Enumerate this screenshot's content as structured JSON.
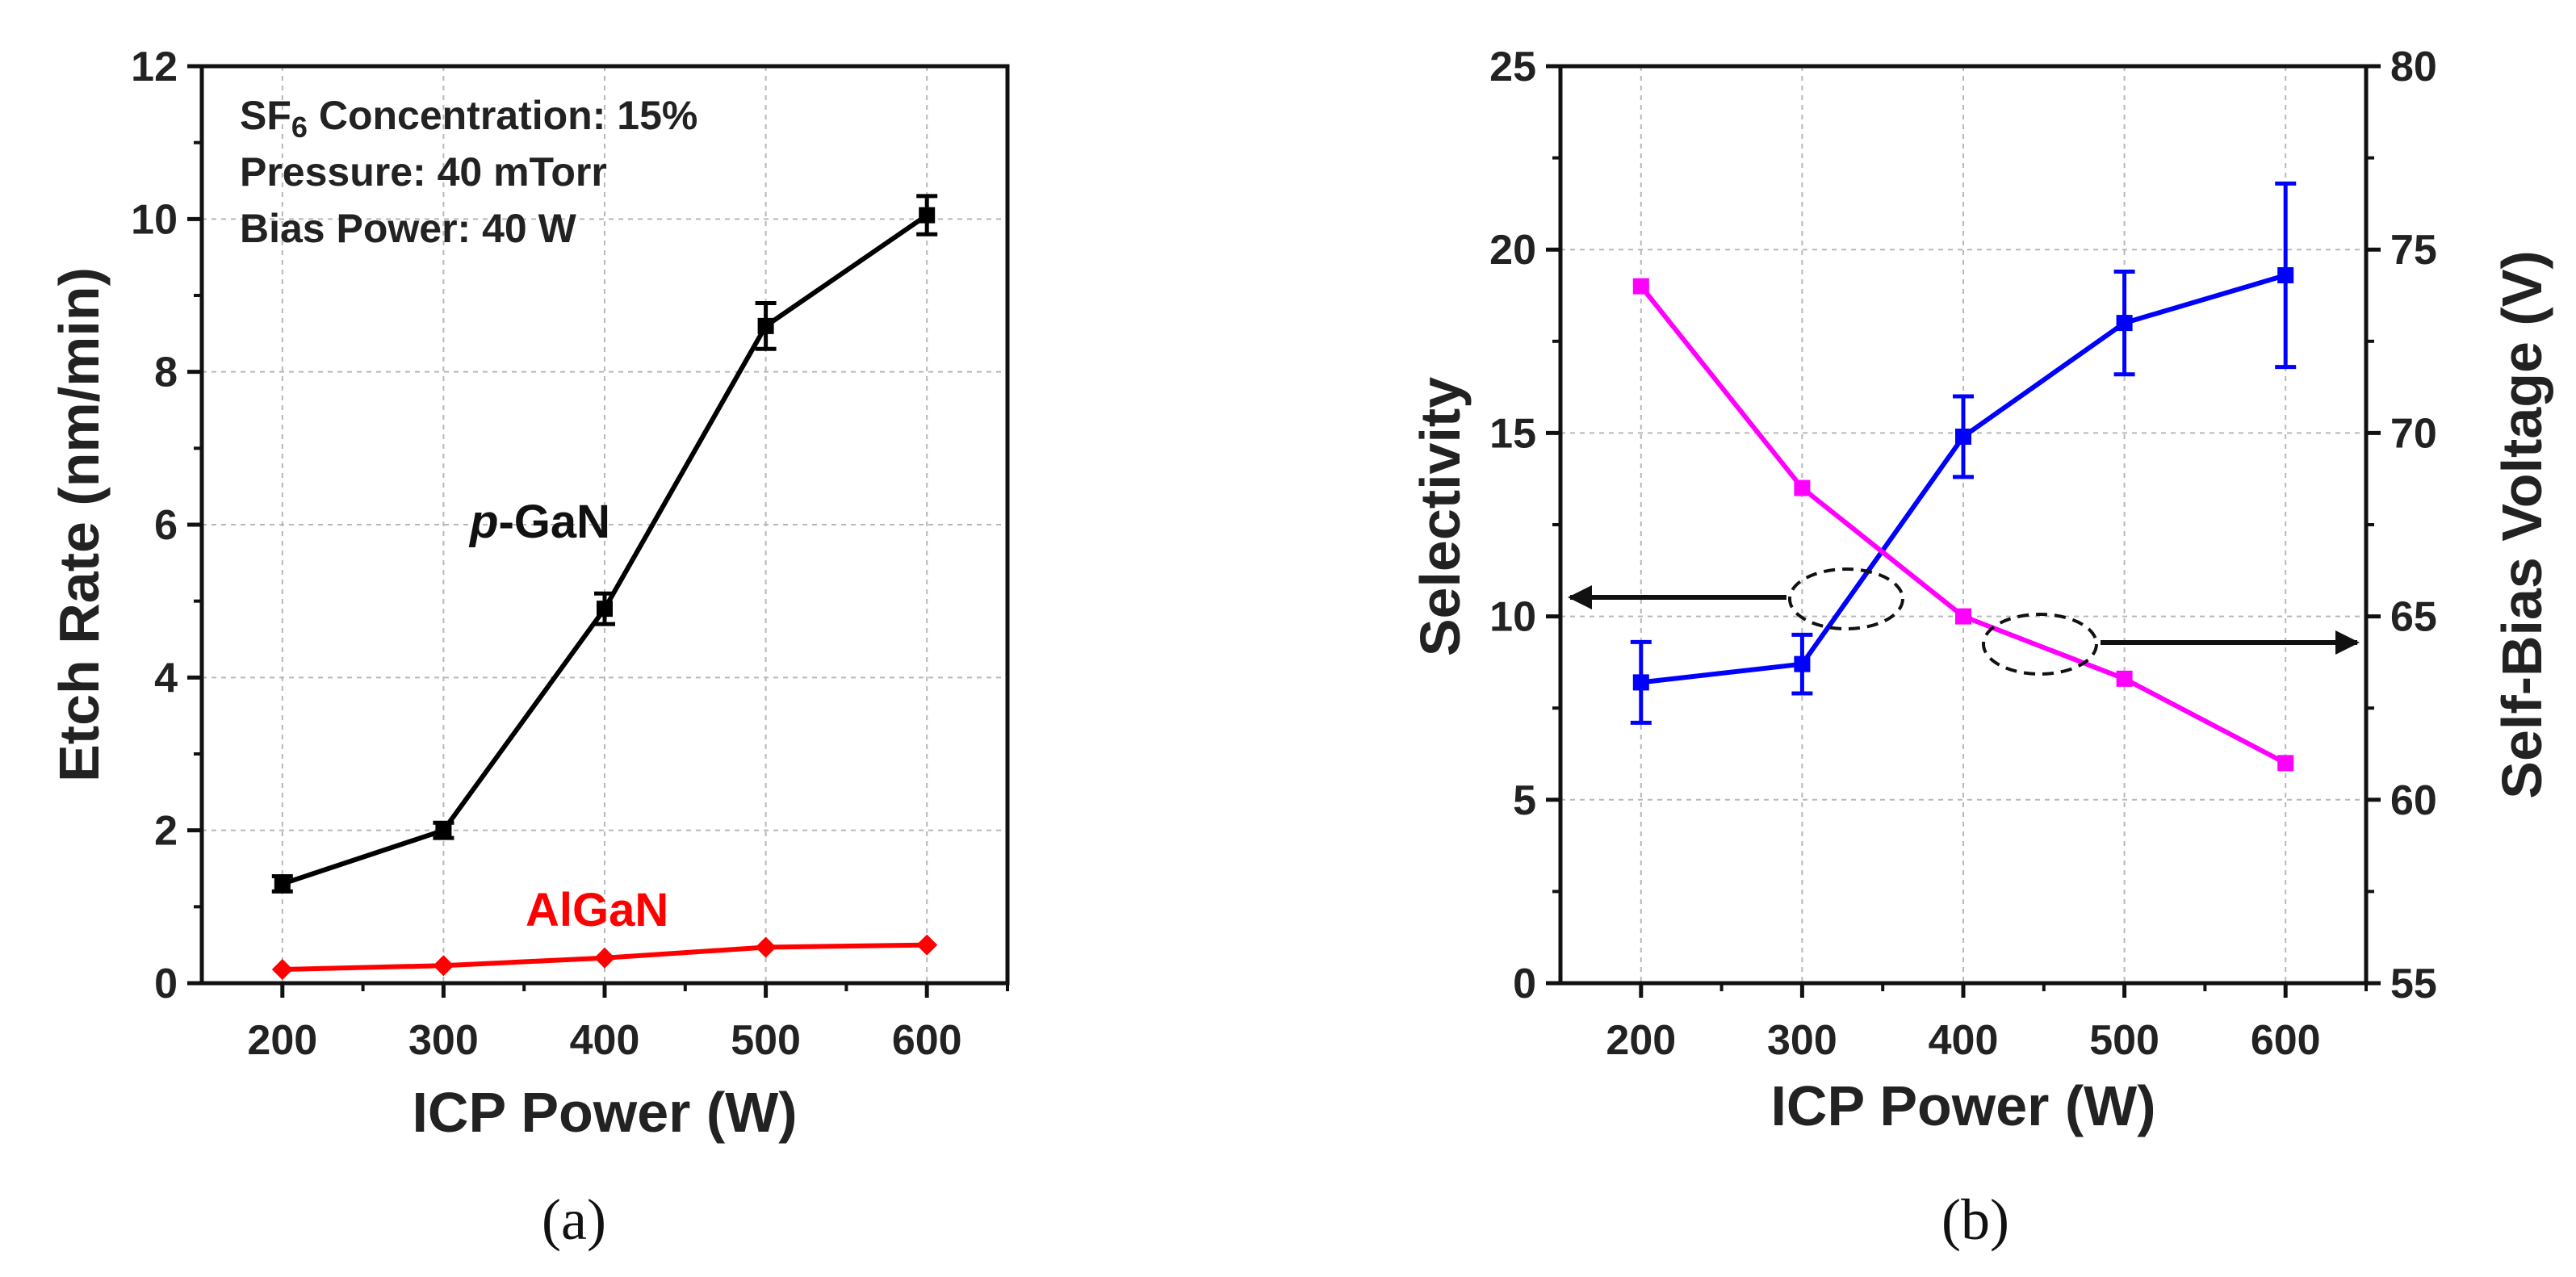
{
  "chart_data": [
    {
      "panel": "a",
      "panel_label": "(a)",
      "type": "line",
      "xlabel": "ICP Power (W)",
      "ylabel": "Etch Rate (nm/min)",
      "xlim": [
        150,
        650
      ],
      "ylim": [
        0,
        12
      ],
      "x_ticks": [
        "200",
        "300",
        "400",
        "500",
        "600"
      ],
      "y_ticks": [
        "0",
        "2",
        "4",
        "6",
        "8",
        "10",
        "12"
      ],
      "grid": true,
      "annotations": {
        "sf6_prefix": "SF",
        "sf6_sub": "6",
        "sf6_suffix": " Concentration: 15%",
        "pressure": "Pressure: 40 mTorr",
        "bias": "Bias Power: 40 W"
      },
      "series": [
        {
          "name_italic": "p",
          "name_rest": "-GaN",
          "color": "#000000",
          "marker": "square",
          "x": [
            200,
            300,
            400,
            500,
            600
          ],
          "values": [
            1.3,
            2.0,
            4.9,
            8.6,
            10.05
          ],
          "errors": [
            0.1,
            0.1,
            0.2,
            0.3,
            0.25
          ]
        },
        {
          "name": "AlGaN",
          "color": "#ff0000",
          "marker": "diamond",
          "x": [
            200,
            300,
            400,
            500,
            600
          ],
          "values": [
            0.18,
            0.23,
            0.33,
            0.47,
            0.5
          ],
          "errors": [
            0,
            0,
            0,
            0,
            0
          ]
        }
      ]
    },
    {
      "panel": "b",
      "panel_label": "(b)",
      "type": "line",
      "xlabel": "ICP Power (W)",
      "ylabel": "Selectivity",
      "ylabel_right": "Self-Bias Voltage (V)",
      "xlim": [
        150,
        650
      ],
      "ylim": [
        0,
        25
      ],
      "ylim_right": [
        55,
        80
      ],
      "x_ticks": [
        "200",
        "300",
        "400",
        "500",
        "600"
      ],
      "y_ticks": [
        "0",
        "5",
        "10",
        "15",
        "20",
        "25"
      ],
      "y_ticks_right": [
        "55",
        "60",
        "65",
        "70",
        "75",
        "80"
      ],
      "grid": true,
      "series": [
        {
          "name": "Selectivity",
          "axis": "left",
          "color": "#0000ff",
          "marker": "square",
          "x": [
            200,
            300,
            400,
            500,
            600
          ],
          "values": [
            8.2,
            8.7,
            14.9,
            18.0,
            19.3
          ],
          "errors": [
            1.1,
            0.8,
            1.1,
            1.4,
            2.5
          ]
        },
        {
          "name": "Self-Bias Voltage",
          "axis": "right",
          "color": "#ff00ff",
          "marker": "square",
          "x": [
            200,
            300,
            400,
            500,
            600
          ],
          "values": [
            74.0,
            68.5,
            65.0,
            63.3,
            61.0
          ],
          "errors": [
            0,
            0,
            0,
            0,
            0
          ]
        }
      ]
    }
  ]
}
